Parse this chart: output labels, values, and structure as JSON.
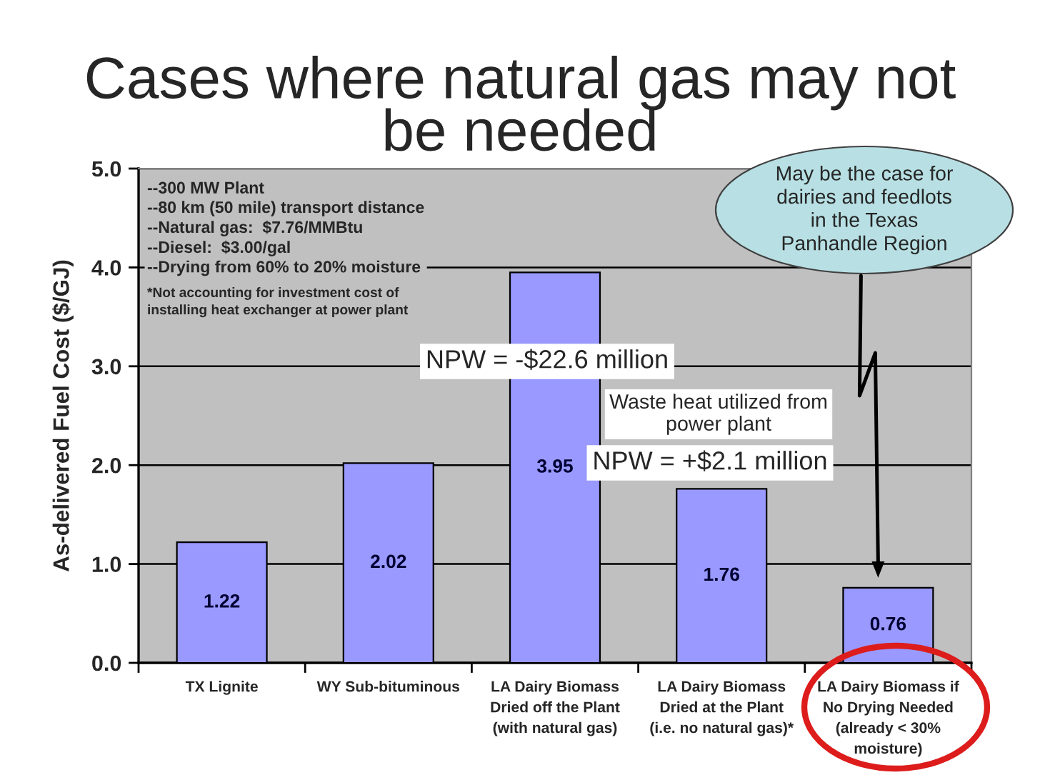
{
  "chart_data": {
    "type": "bar",
    "title": "Cases where natural gas may not\nbe needed",
    "ylabel": "As-delivered Fuel Cost ($/GJ)",
    "categories": [
      "TX Lignite",
      "WY Sub-bituminous",
      "LA Dairy Biomass\nDried off the Plant\n(with natural gas)",
      "LA Dairy Biomass\nDried at the Plant\n(i.e. no natural gas)*",
      "LA Dairy Biomass if\nNo Drying Needed\n(already < 30%\nmoisture)"
    ],
    "values": [
      1.22,
      2.02,
      3.95,
      1.76,
      0.76
    ],
    "color": "#9999ff",
    "data_labels": true,
    "ylim": [
      0,
      5
    ],
    "yticks": [
      {
        "value": 0,
        "label": "0.0"
      },
      {
        "value": 1,
        "label": "1.0"
      },
      {
        "value": 2,
        "label": "2.0"
      },
      {
        "value": 3,
        "label": "3.0"
      },
      {
        "value": 4,
        "label": "4.0"
      },
      {
        "value": 5,
        "label": "5.0"
      }
    ],
    "grid": "y",
    "annotations": [
      "--300 MW Plant\n--80 km (50 mile) transport distance\n--Natural gas:  $7.76/MMBtu\n--Diesel:  $3.00/gal\n--Drying from 60% to 20% moisture",
      "*Not accounting for investment cost of\ninstalling heat exchanger at power plant",
      "NPW = -$22.6 million",
      "Waste heat utilized from\npower plant",
      "NPW = +$2.1 million",
      "May be the case for\ndairies and feedlots\nin the Texas\nPanhandle Region"
    ]
  }
}
